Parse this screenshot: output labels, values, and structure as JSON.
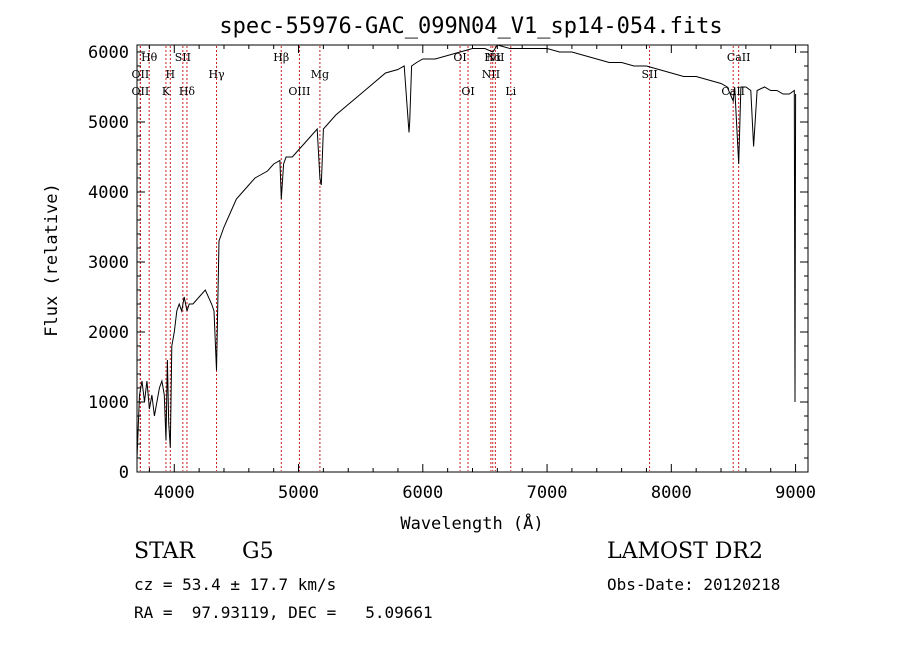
{
  "chart_data": {
    "type": "line",
    "title": "spec-55976-GAC_099N04_V1_sp14-054.fits",
    "xlabel": "Wavelength (Å)",
    "ylabel": "Flux (relative)",
    "xlim": [
      3700,
      9100
    ],
    "ylim": [
      0,
      6100
    ],
    "x_ticks": [
      4000,
      5000,
      6000,
      7000,
      8000,
      9000
    ],
    "y_ticks": [
      0,
      1000,
      2000,
      3000,
      4000,
      5000,
      6000
    ],
    "grid": false,
    "series": [
      {
        "x": [
          3700,
          3720,
          3740,
          3760,
          3780,
          3800,
          3820,
          3840,
          3860,
          3880,
          3900,
          3920,
          3933,
          3945,
          3955,
          3968,
          3980,
          4000,
          4020,
          4040,
          4060,
          4080,
          4102,
          4120,
          4150,
          4200,
          4250,
          4300,
          4320,
          4340,
          4360,
          4400,
          4450,
          4500,
          4550,
          4600,
          4650,
          4700,
          4750,
          4800,
          4850,
          4861,
          4880,
          4900,
          4950,
          5000,
          5050,
          5100,
          5150,
          5172,
          5183,
          5200,
          5250,
          5300,
          5400,
          5500,
          5600,
          5700,
          5800,
          5850,
          5889,
          5895,
          5910,
          5950,
          6000,
          6100,
          6200,
          6300,
          6400,
          6500,
          6563,
          6600,
          6700,
          6800,
          6900,
          7000,
          7100,
          7200,
          7300,
          7400,
          7500,
          7600,
          7700,
          7800,
          7900,
          8000,
          8100,
          8200,
          8300,
          8400,
          8450,
          8498,
          8510,
          8542,
          8560,
          8600,
          8640,
          8662,
          8690,
          8750,
          8800,
          8850,
          8900,
          8950,
          8990,
          8995,
          9000
        ],
        "y": [
          200,
          1100,
          1300,
          1000,
          1300,
          900,
          1100,
          800,
          1000,
          1200,
          1300,
          1100,
          450,
          1600,
          700,
          350,
          1800,
          2000,
          2300,
          2400,
          2300,
          2500,
          2300,
          2400,
          2400,
          2500,
          2600,
          2400,
          2300,
          1450,
          3300,
          3500,
          3700,
          3900,
          4000,
          4100,
          4200,
          4250,
          4300,
          4400,
          4450,
          3900,
          4400,
          4500,
          4500,
          4600,
          4700,
          4800,
          4900,
          4200,
          4100,
          4900,
          5000,
          5100,
          5250,
          5400,
          5550,
          5700,
          5750,
          5800,
          4850,
          5000,
          5800,
          5850,
          5900,
          5900,
          5950,
          6000,
          6050,
          6050,
          6000,
          6100,
          6050,
          6050,
          6050,
          6050,
          6000,
          6000,
          5950,
          5900,
          5850,
          5850,
          5800,
          5800,
          5750,
          5700,
          5650,
          5650,
          5600,
          5550,
          5500,
          5300,
          5500,
          4400,
          5500,
          5500,
          5450,
          4650,
          5450,
          5500,
          5450,
          5450,
          5400,
          5400,
          5450,
          1000,
          5400
        ]
      }
    ],
    "line_markers": [
      {
        "label": "Hθ",
        "x": 3798,
        "row": 1
      },
      {
        "label": "OII",
        "x": 3727,
        "row": 2
      },
      {
        "label": "OII",
        "x": 3727,
        "row": 3
      },
      {
        "label": "H",
        "x": 3968,
        "row": 2
      },
      {
        "label": "K",
        "x": 3933,
        "row": 3
      },
      {
        "label": "SII",
        "x": 4069,
        "row": 1
      },
      {
        "label": "Hδ",
        "x": 4102,
        "row": 3
      },
      {
        "label": "Hγ",
        "x": 4340,
        "row": 2
      },
      {
        "label": "Hβ",
        "x": 4861,
        "row": 1
      },
      {
        "label": "Mg",
        "x": 5172,
        "row": 2
      },
      {
        "label": "OIII",
        "x": 5007,
        "row": 3
      },
      {
        "label": "OI",
        "x": 6300,
        "row": 1
      },
      {
        "label": "OI",
        "x": 6364,
        "row": 3
      },
      {
        "label": "Hα",
        "x": 6563,
        "row": 1
      },
      {
        "label": "NII",
        "x": 6584,
        "row": 1
      },
      {
        "label": "NII",
        "x": 6548,
        "row": 2
      },
      {
        "label": "Li",
        "x": 6708,
        "row": 3
      },
      {
        "label": "SII",
        "x": 7825,
        "row": 2
      },
      {
        "label": "CaII",
        "x": 8542,
        "row": 1
      },
      {
        "label": "CaII",
        "x": 8498,
        "row": 3
      }
    ],
    "line_color": "#000000",
    "marker_color": "#c81e1e"
  },
  "info": {
    "class": "STAR",
    "subclass": "G5",
    "survey": "LAMOST DR2",
    "cz": "cz = 53.4 ± 17.7 km/s",
    "obs_date": "Obs-Date: 20120218",
    "coords": "RA =  97.93119, DEC =   5.09661"
  }
}
